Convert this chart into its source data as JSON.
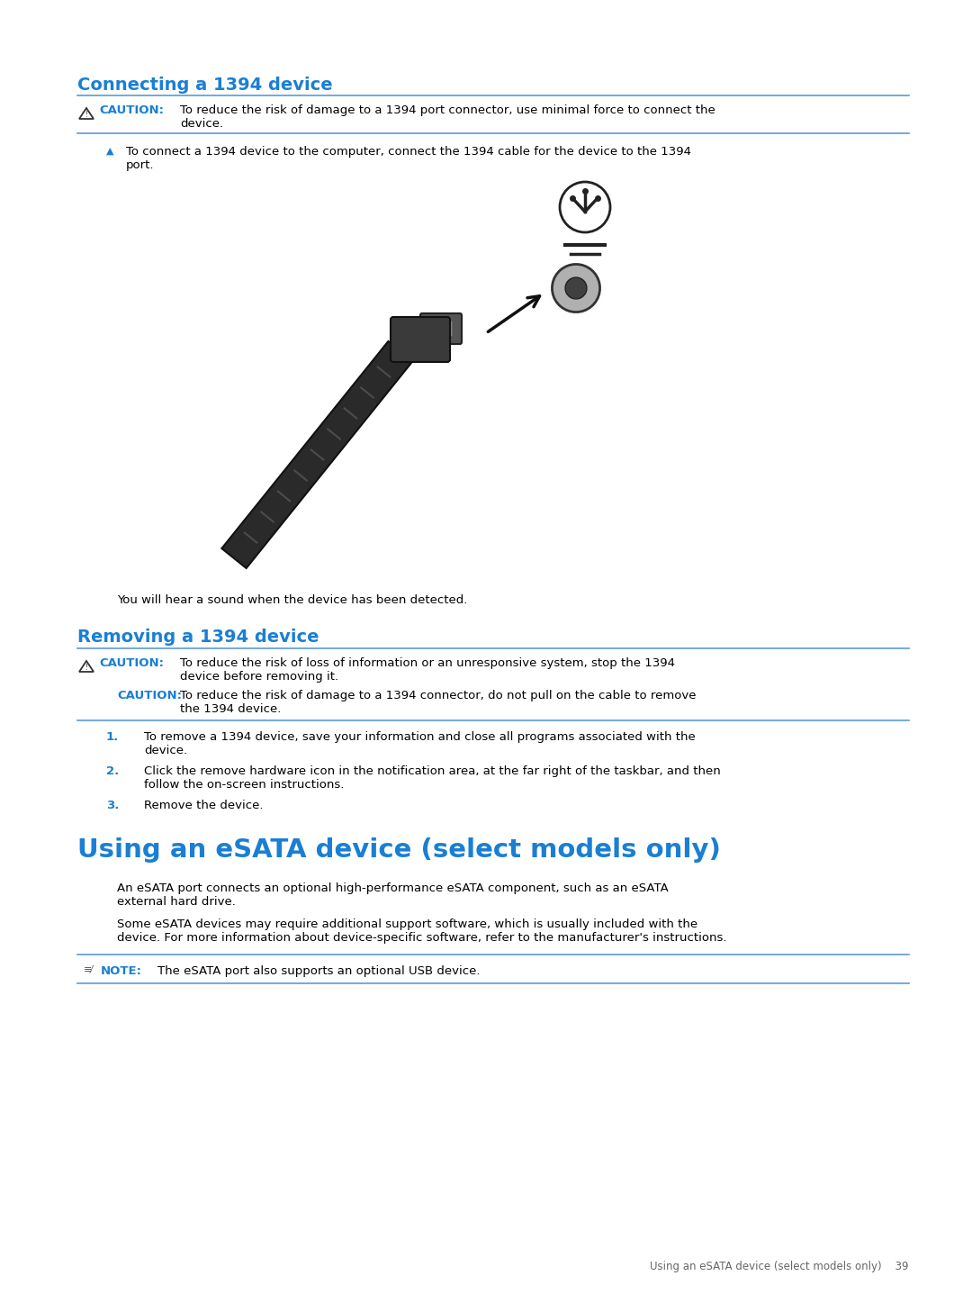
{
  "bg_color": "#ffffff",
  "blue_h2": "#1a7fd4",
  "blue_h1": "#1a7fd4",
  "caution_blue": "#1a7fd4",
  "black": "#000000",
  "line_color": "#5b9bd5",
  "gray_footer": "#666666",
  "section1_heading": "Connecting a 1394 device",
  "caution1_text1": "To reduce the risk of damage to a 1394 port connector, use minimal force to connect the",
  "caution1_text2": "device.",
  "bullet1_text1": "To connect a 1394 device to the computer, connect the 1394 cable for the device to the 1394",
  "bullet1_text2": "port.",
  "detected_text": "You will hear a sound when the device has been detected.",
  "section2_heading": "Removing a 1394 device",
  "caution2_text1": "To reduce the risk of loss of information or an unresponsive system, stop the 1394",
  "caution2_text2": "device before removing it.",
  "caution3_text1": "To reduce the risk of damage to a 1394 connector, do not pull on the cable to remove",
  "caution3_text2": "the 1394 device.",
  "step1_text1": "To remove a 1394 device, save your information and close all programs associated with the",
  "step1_text2": "device.",
  "step2_text1": "Click the remove hardware icon in the notification area, at the far right of the taskbar, and then",
  "step2_text2": "follow the on-screen instructions.",
  "step3_text1": "Remove the device.",
  "section3_heading": "Using an eSATA device (select models only)",
  "esata_p1_l1": "An eSATA port connects an optional high-performance eSATA component, such as an eSATA",
  "esata_p1_l2": "external hard drive.",
  "esata_p2_l1": "Some eSATA devices may require additional support software, which is usually included with the",
  "esata_p2_l2": "device. For more information about device-specific software, refer to the manufacturer's instructions.",
  "note_text": "The eSATA port also supports an optional USB device.",
  "footer_text": "Using an eSATA device (select models only)    39"
}
